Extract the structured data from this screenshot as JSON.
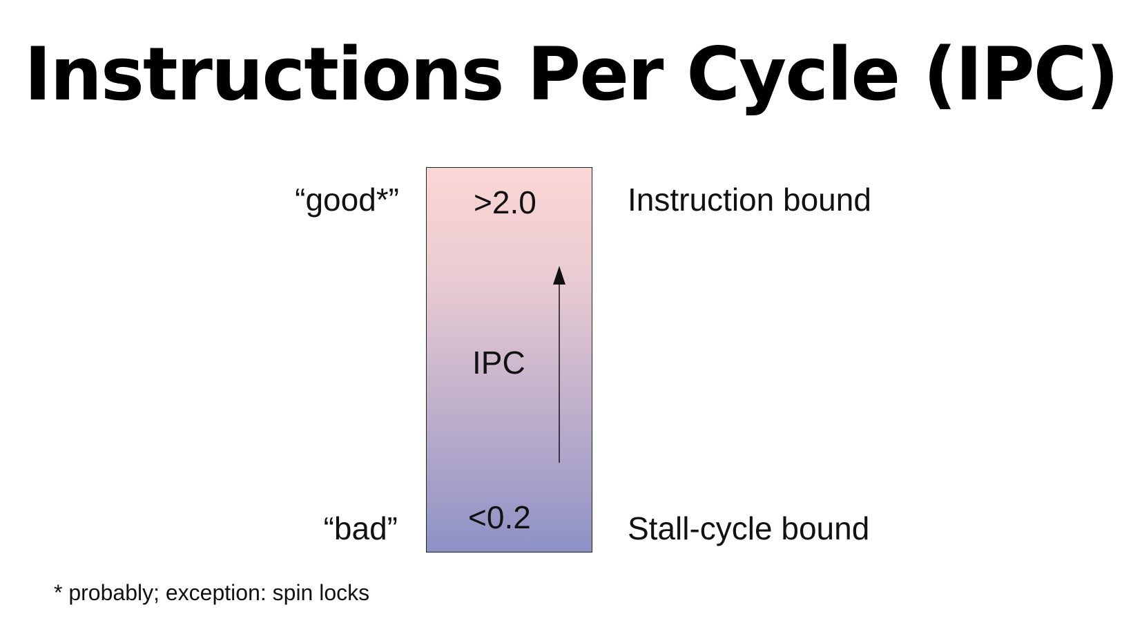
{
  "title": "Instructions Per Cycle (IPC)",
  "bar": {
    "top_value": ">2.0",
    "bottom_value": "<0.2",
    "axis_label": "IPC",
    "gradient_top_color": "#fbd6d5",
    "gradient_bottom_color": "#8d91c6"
  },
  "left_labels": {
    "top": "“good*”",
    "bottom": "“bad”"
  },
  "right_labels": {
    "top": "Instruction bound",
    "bottom": "Stall-cycle bound"
  },
  "footnote": "* probably; exception: spin locks",
  "icons": {
    "arrow": "up-arrow-icon"
  }
}
